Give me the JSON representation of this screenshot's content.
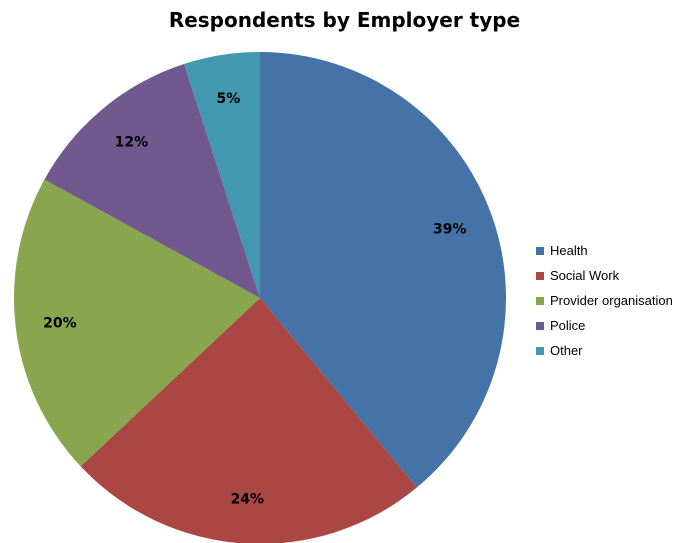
{
  "chart_data": {
    "type": "pie",
    "title": "Respondents by Employer type",
    "categories": [
      "Health",
      "Social Work",
      "Provider organisation",
      "Police",
      "Other"
    ],
    "values": [
      39,
      24,
      20,
      12,
      5
    ],
    "value_labels": [
      "39%",
      "24%",
      "20%",
      "12%",
      "5%"
    ],
    "colors": [
      "#4572A7",
      "#AA4643",
      "#89A54E",
      "#71588F",
      "#4198AF"
    ],
    "legend_position": "right"
  }
}
